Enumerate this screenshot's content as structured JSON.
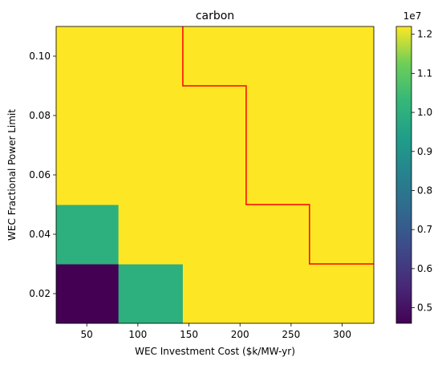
{
  "chart_data": {
    "type": "heatmap",
    "title": "carbon",
    "xlabel": "WEC Investment Cost ($k/MW-yr)",
    "ylabel": "WEC Fractional Power Limit",
    "x_edges": [
      20,
      81,
      144,
      206,
      268,
      331
    ],
    "y_edges": [
      0.01,
      0.03,
      0.05,
      0.07,
      0.09,
      0.11
    ],
    "xlim": [
      20,
      331
    ],
    "ylim": [
      0.01,
      0.11
    ],
    "xticks": [
      50,
      100,
      150,
      200,
      250,
      300
    ],
    "yticks": [
      0.02,
      0.04,
      0.06,
      0.08,
      0.1
    ],
    "ytick_labels": [
      "0.02",
      "0.04",
      "0.06",
      "0.08",
      "0.10"
    ],
    "values": [
      [
        4600000.0,
        10000000.0,
        12200000.0,
        12200000.0,
        12200000.0
      ],
      [
        10000000.0,
        12200000.0,
        12200000.0,
        12200000.0,
        12200000.0
      ],
      [
        12200000.0,
        12200000.0,
        12200000.0,
        12200000.0,
        12200000.0
      ],
      [
        12200000.0,
        12200000.0,
        12200000.0,
        12200000.0,
        12200000.0
      ],
      [
        12200000.0,
        12200000.0,
        12200000.0,
        12200000.0,
        12200000.0
      ]
    ],
    "colormap": "viridis",
    "colorbar": {
      "vmin": 4600000.0,
      "vmax": 12200000.0,
      "ticks": [
        5000000.0,
        6000000.0,
        7000000.0,
        8000000.0,
        9000000.0,
        10000000.0,
        11000000.0,
        12000000.0
      ],
      "tick_labels": [
        "0.5",
        "0.6",
        "0.7",
        "0.8",
        "0.9",
        "1.0",
        "1.1",
        "1.2"
      ],
      "offset_label": "1e7"
    },
    "boundary": {
      "color": "#ff0000",
      "points": [
        [
          144,
          0.11
        ],
        [
          144,
          0.09
        ],
        [
          206,
          0.09
        ],
        [
          206,
          0.05
        ],
        [
          268,
          0.05
        ],
        [
          268,
          0.03
        ],
        [
          331,
          0.03
        ]
      ]
    }
  }
}
